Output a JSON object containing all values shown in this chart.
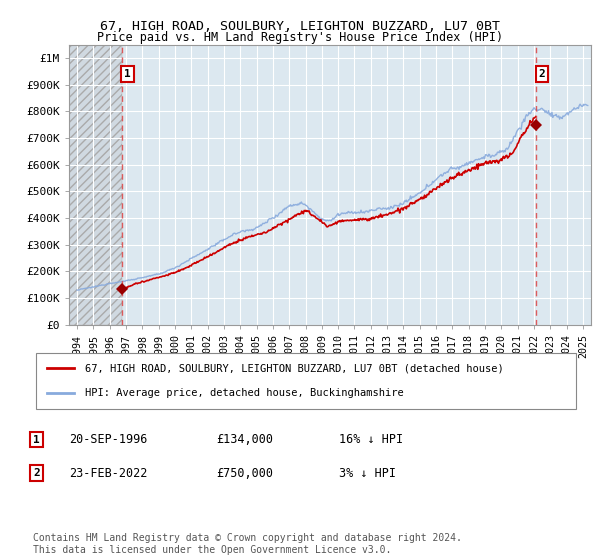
{
  "title1": "67, HIGH ROAD, SOULBURY, LEIGHTON BUZZARD, LU7 0BT",
  "title2": "Price paid vs. HM Land Registry's House Price Index (HPI)",
  "ylabel_ticks": [
    "£0",
    "£100K",
    "£200K",
    "£300K",
    "£400K",
    "£500K",
    "£600K",
    "£700K",
    "£800K",
    "£900K",
    "£1M"
  ],
  "ytick_values": [
    0,
    100000,
    200000,
    300000,
    400000,
    500000,
    600000,
    700000,
    800000,
    900000,
    1000000
  ],
  "ylim": [
    0,
    1050000
  ],
  "xlim_start": 1993.5,
  "xlim_end": 2025.5,
  "transaction1_date": 1996.72,
  "transaction1_price": 134000,
  "transaction2_date": 2022.12,
  "transaction2_price": 750000,
  "annotation1_date": "20-SEP-1996",
  "annotation1_price": "£134,000",
  "annotation1_pct": "16% ↓ HPI",
  "annotation2_date": "23-FEB-2022",
  "annotation2_price": "£750,000",
  "annotation2_pct": "3% ↓ HPI",
  "legend_line1": "67, HIGH ROAD, SOULBURY, LEIGHTON BUZZARD, LU7 0BT (detached house)",
  "legend_line2": "HPI: Average price, detached house, Buckinghamshire",
  "footer": "Contains HM Land Registry data © Crown copyright and database right 2024.\nThis data is licensed under the Open Government Licence v3.0.",
  "price_color": "#cc0000",
  "hpi_color": "#88aadd",
  "marker_color": "#990000",
  "dashed_line_color": "#dd4444",
  "grid_color": "#c8d8e8",
  "bg_color": "#dce8f0"
}
